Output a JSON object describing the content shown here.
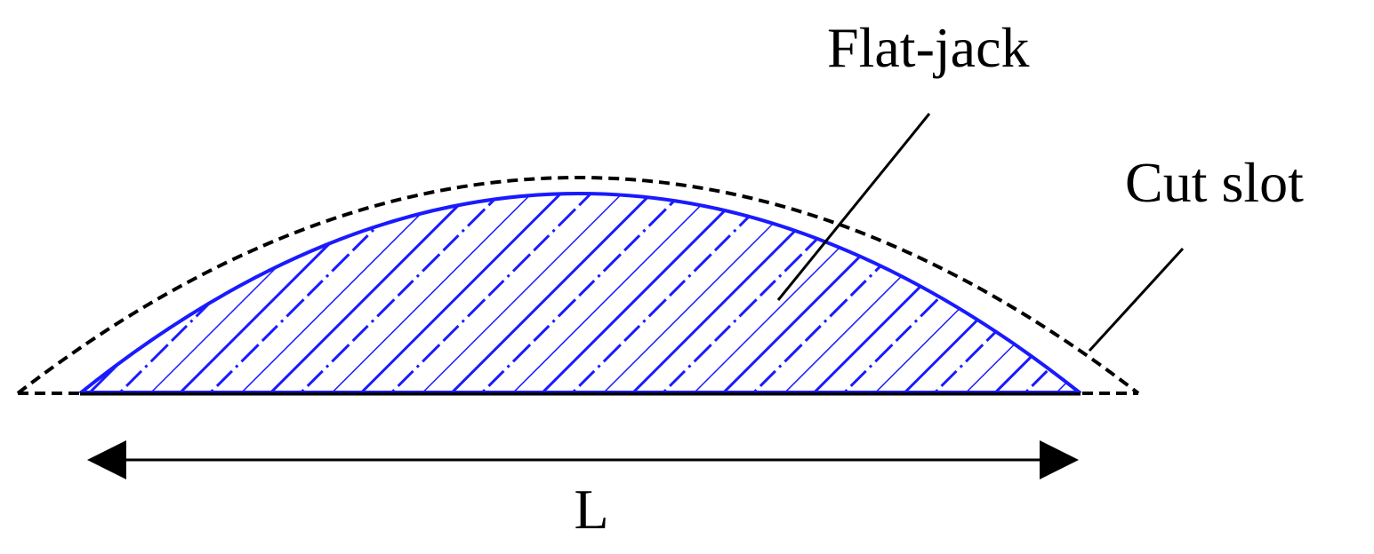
{
  "labels": {
    "flat_jack": "Flat-jack",
    "cut_slot": "Cut slot",
    "length": "L"
  }
}
